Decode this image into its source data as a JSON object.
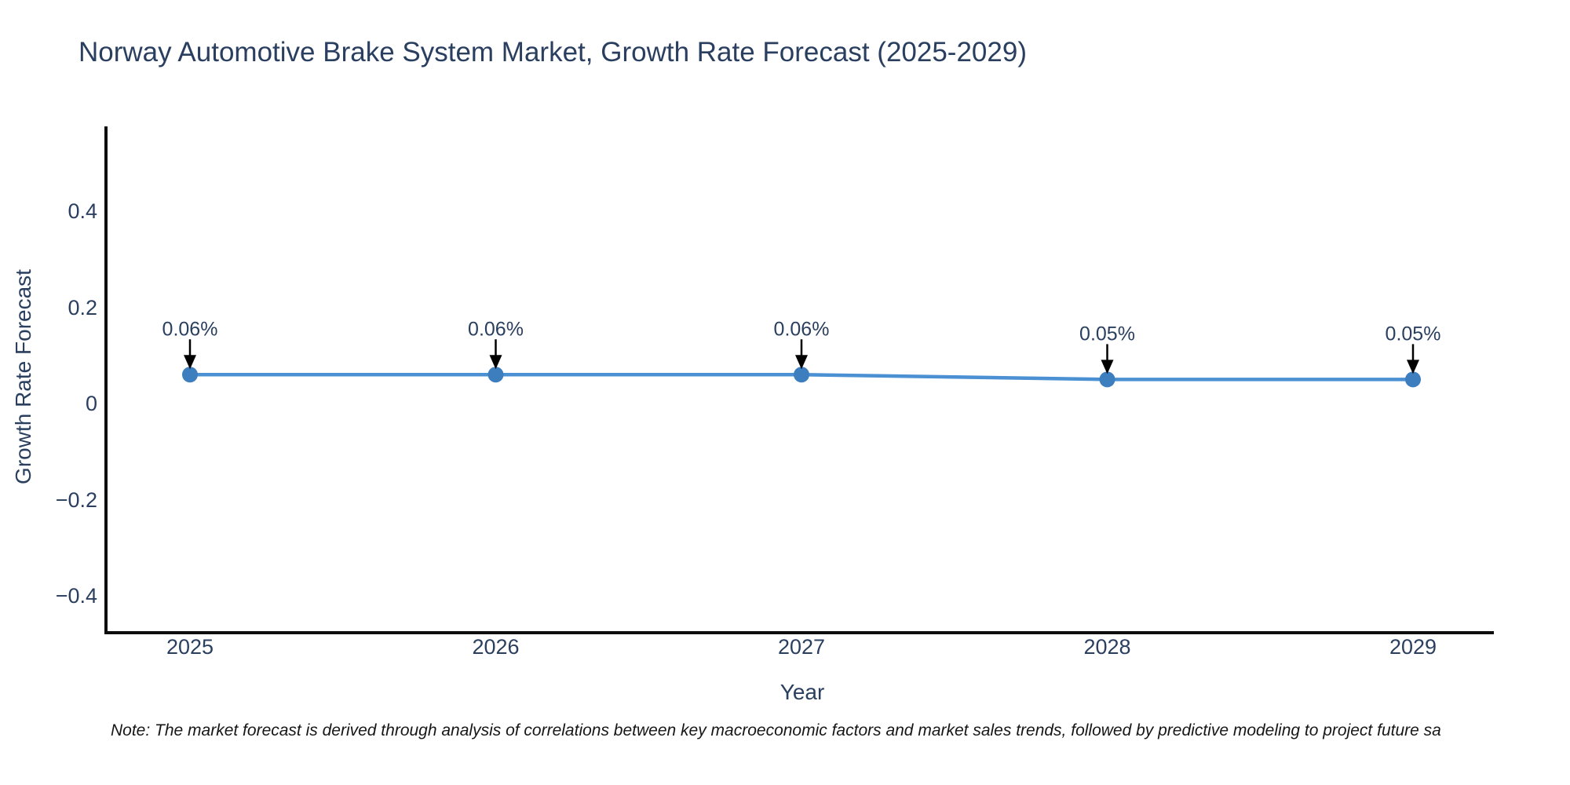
{
  "title": "Norway Automotive Brake System Market, Growth Rate Forecast (2025-2029)",
  "note": "Note: The market forecast is derived through analysis of correlations between key macroeconomic factors and market sales trends, followed by predictive modeling to project future sa",
  "chart_data": {
    "type": "line",
    "title": "Norway Automotive Brake System Market, Growth Rate Forecast (2025-2029)",
    "xlabel": "Year",
    "ylabel": "Growth Rate Forecast",
    "x": [
      2025,
      2026,
      2027,
      2028,
      2029
    ],
    "x_tick_labels": [
      "2025",
      "2026",
      "2027",
      "2028",
      "2029"
    ],
    "values": [
      0.06,
      0.06,
      0.06,
      0.05,
      0.05
    ],
    "point_labels": [
      "0.06%",
      "0.06%",
      "0.06%",
      "0.05%",
      "0.05%"
    ],
    "y_ticks": [
      0.4,
      0.2,
      0,
      -0.2,
      -0.4
    ],
    "y_tick_labels": [
      "0.4",
      "0.2",
      "0",
      "−0.2",
      "−0.4"
    ],
    "ylim": [
      -0.48,
      0.57
    ],
    "grid": false,
    "legend": "none",
    "marker": "circle-with-down-arrow-annotation",
    "colors": {
      "line": "#4a90d2",
      "marker": "#3d7ebf",
      "arrow": "#000000",
      "text": "#2a3f5f",
      "axis": "#0d0d0d"
    }
  }
}
